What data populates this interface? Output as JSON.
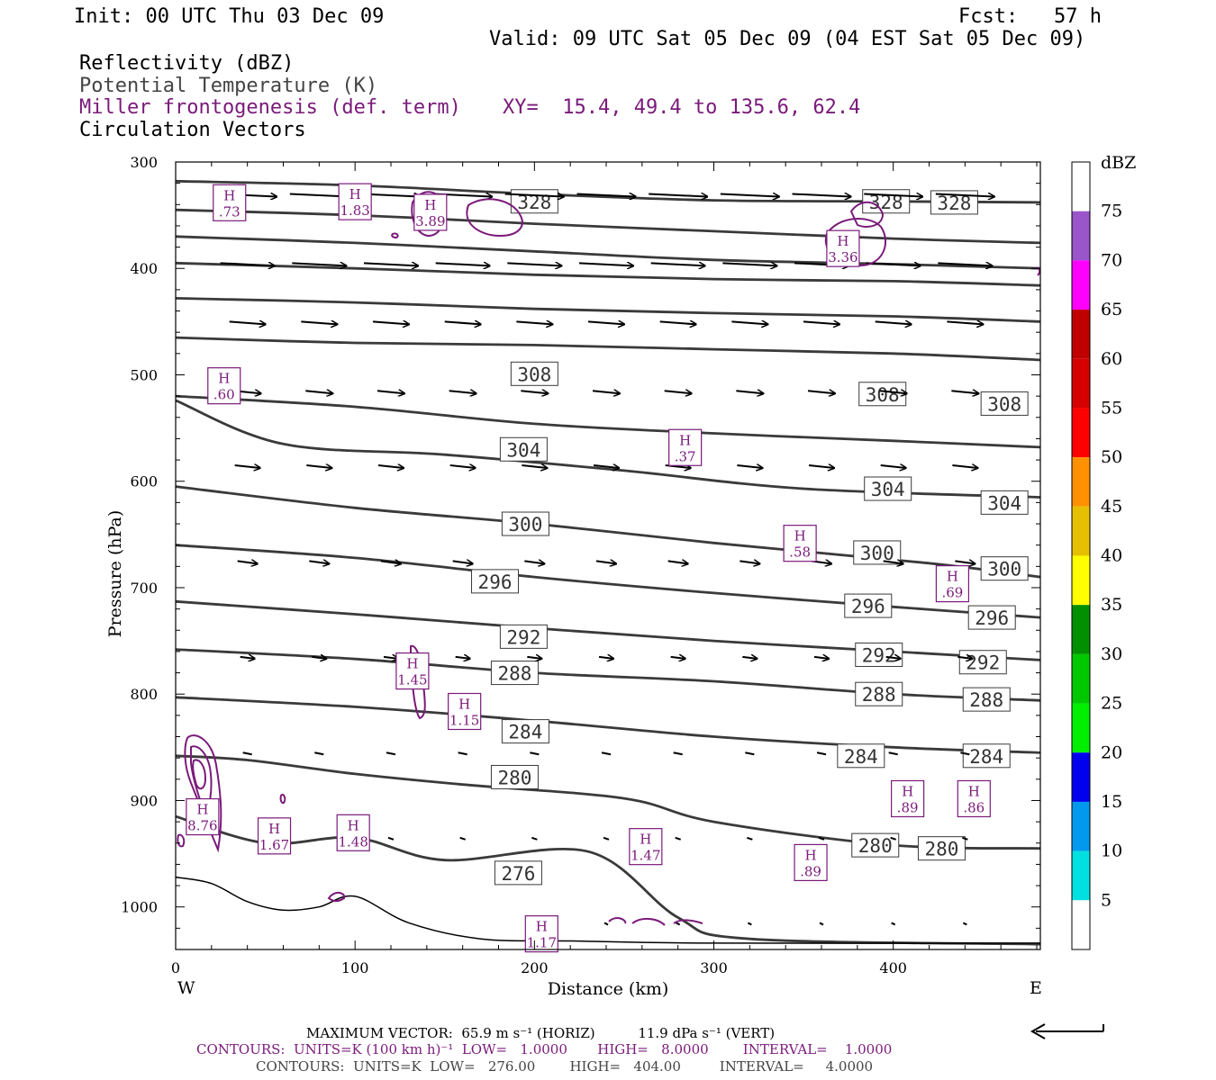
{
  "header": {
    "init": "Init: 00 UTC Thu 03 Dec 09",
    "fcst": "Fcst:   57 h",
    "valid": "Valid: 09 UTC Sat 05 Dec 09 (04 EST Sat 05 Dec 09)",
    "field1": "Reflectivity (dBZ)",
    "field2": "Potential Temperature (K)",
    "field3": "Miller frontogenesis (def. term)",
    "xy": "XY=  15.4, 49.4 to 135.6, 62.4",
    "field4": "Circulation Vectors"
  },
  "colorbar": {
    "unit": "dBZ",
    "levels": [
      5,
      10,
      15,
      20,
      25,
      30,
      35,
      40,
      45,
      50,
      55,
      60,
      65,
      70,
      75
    ],
    "colors": [
      "#ffffff",
      "#00e0e0",
      "#0099ee",
      "#0000ee",
      "#00ee00",
      "#00c800",
      "#009000",
      "#ffff00",
      "#e6c000",
      "#ff9000",
      "#ff0000",
      "#d60000",
      "#c00000",
      "#ff00ff",
      "#9955c9",
      "#ffffff"
    ]
  },
  "footer": {
    "max_vector": "MAXIMUM VECTOR:  65.9 m s⁻¹ (HORIZ)          11.9 dPa s⁻¹ (VERT)",
    "contours1": "CONTOURS:  UNITS=K (100 km h)⁻¹  LOW=   1.0000       HIGH=   8.0000        INTERVAL=    1.0000",
    "contours2": "CONTOURS:  UNITS=K  LOW=   276.00        HIGH=   404.00         INTERVAL=     4.0000"
  },
  "chart_data": {
    "type": "contour-cross-section",
    "xlabel": "Distance (km)",
    "ylabel": "Pressure (hPa)",
    "xlim": [
      0,
      482
    ],
    "ylim": [
      1040,
      300
    ],
    "x_ticks": [
      0,
      100,
      200,
      300,
      400
    ],
    "y_ticks": [
      300,
      400,
      500,
      600,
      700,
      800,
      900,
      1000
    ],
    "left_label": "W",
    "right_label": "E",
    "theta_contours": [
      {
        "label": "328",
        "points": [
          [
            0,
            318
          ],
          [
            100,
            322
          ],
          [
            200,
            330
          ],
          [
            300,
            336
          ],
          [
            400,
            337
          ],
          [
            482,
            338
          ]
        ],
        "labels_at": [
          [
            200,
            337
          ],
          [
            396,
            337
          ],
          [
            434,
            338
          ]
        ]
      },
      {
        "label": "",
        "points": [
          [
            0,
            345
          ],
          [
            100,
            350
          ],
          [
            200,
            358
          ],
          [
            300,
            365
          ],
          [
            400,
            372
          ],
          [
            482,
            376
          ]
        ],
        "labels_at": []
      },
      {
        "label": "",
        "points": [
          [
            0,
            370
          ],
          [
            100,
            376
          ],
          [
            200,
            384
          ],
          [
            300,
            392
          ],
          [
            400,
            396
          ],
          [
            482,
            400
          ]
        ],
        "labels_at": []
      },
      {
        "label": "",
        "points": [
          [
            0,
            395
          ],
          [
            100,
            400
          ],
          [
            200,
            406
          ],
          [
            300,
            410
          ],
          [
            400,
            412
          ],
          [
            482,
            416
          ]
        ],
        "labels_at": []
      },
      {
        "label": "",
        "points": [
          [
            0,
            428
          ],
          [
            100,
            432
          ],
          [
            200,
            438
          ],
          [
            300,
            442
          ],
          [
            400,
            445
          ],
          [
            482,
            450
          ]
        ],
        "labels_at": []
      },
      {
        "label": "",
        "points": [
          [
            0,
            465
          ],
          [
            100,
            470
          ],
          [
            200,
            472
          ],
          [
            300,
            476
          ],
          [
            400,
            480
          ],
          [
            482,
            486
          ]
        ],
        "labels_at": []
      },
      {
        "label": "308",
        "points": [
          [
            0,
            520
          ],
          [
            100,
            530
          ],
          [
            200,
            546
          ],
          [
            300,
            555
          ],
          [
            400,
            562
          ],
          [
            482,
            568
          ]
        ],
        "labels_at": [
          [
            200,
            499
          ],
          [
            394,
            518
          ],
          [
            462,
            527
          ]
        ]
      },
      {
        "label": "304",
        "points": [
          [
            0,
            524
          ],
          [
            60,
            565
          ],
          [
            150,
            575
          ],
          [
            250,
            590
          ],
          [
            350,
            607
          ],
          [
            482,
            615
          ]
        ],
        "labels_at": [
          [
            194,
            570
          ],
          [
            397,
            607
          ],
          [
            462,
            620
          ]
        ]
      },
      {
        "label": "300",
        "points": [
          [
            0,
            605
          ],
          [
            100,
            625
          ],
          [
            200,
            640
          ],
          [
            300,
            658
          ],
          [
            420,
            677
          ],
          [
            482,
            690
          ]
        ],
        "labels_at": [
          [
            195,
            640
          ],
          [
            391,
            667
          ],
          [
            462,
            682
          ]
        ]
      },
      {
        "label": "296",
        "points": [
          [
            0,
            660
          ],
          [
            100,
            672
          ],
          [
            200,
            690
          ],
          [
            300,
            705
          ],
          [
            400,
            718
          ],
          [
            482,
            728
          ]
        ],
        "labels_at": [
          [
            178,
            694
          ],
          [
            386,
            717
          ],
          [
            455,
            728
          ]
        ]
      },
      {
        "label": "292",
        "points": [
          [
            0,
            713
          ],
          [
            100,
            725
          ],
          [
            200,
            738
          ],
          [
            300,
            750
          ],
          [
            400,
            760
          ],
          [
            482,
            768
          ]
        ],
        "labels_at": [
          [
            194,
            746
          ],
          [
            392,
            763
          ],
          [
            450,
            770
          ]
        ]
      },
      {
        "label": "288",
        "points": [
          [
            0,
            758
          ],
          [
            100,
            767
          ],
          [
            200,
            780
          ],
          [
            300,
            788
          ],
          [
            400,
            800
          ],
          [
            482,
            806
          ]
        ],
        "labels_at": [
          [
            189,
            780
          ],
          [
            392,
            800
          ],
          [
            452,
            805
          ]
        ]
      },
      {
        "label": "284",
        "points": [
          [
            0,
            803
          ],
          [
            100,
            812
          ],
          [
            200,
            825
          ],
          [
            300,
            840
          ],
          [
            400,
            850
          ],
          [
            482,
            855
          ]
        ],
        "labels_at": [
          [
            195,
            835
          ],
          [
            382,
            858
          ],
          [
            452,
            858
          ]
        ]
      },
      {
        "label": "280",
        "points": [
          [
            0,
            858
          ],
          [
            40,
            862
          ],
          [
            100,
            875
          ],
          [
            160,
            885
          ],
          [
            250,
            898
          ],
          [
            300,
            920
          ],
          [
            400,
            942
          ],
          [
            482,
            945
          ]
        ],
        "labels_at": [
          [
            189,
            878
          ],
          [
            390,
            942
          ],
          [
            427,
            945
          ]
        ]
      },
      {
        "label": "276",
        "points": [
          [
            0,
            915
          ],
          [
            50,
            940
          ],
          [
            100,
            935
          ],
          [
            150,
            956
          ],
          [
            230,
            948
          ],
          [
            280,
            1010
          ],
          [
            320,
            1030
          ],
          [
            482,
            1035
          ]
        ],
        "labels_at": [
          [
            191,
            968
          ]
        ]
      }
    ],
    "frontogenesis_highs": [
      {
        "label": ".73",
        "x": 30,
        "p": 340
      },
      {
        "label": "1.83",
        "x": 100,
        "p": 339
      },
      {
        "label": "3.89",
        "x": 142,
        "p": 349
      },
      {
        "label": "3.36",
        "x": 372,
        "p": 383
      },
      {
        "label": ".60",
        "x": 27,
        "p": 512
      },
      {
        "label": ".37",
        "x": 284,
        "p": 570
      },
      {
        "label": "1.45",
        "x": 132,
        "p": 780
      },
      {
        "label": "1.15",
        "x": 161,
        "p": 818
      },
      {
        "label": ".58",
        "x": 348,
        "p": 660
      },
      {
        "label": ".69",
        "x": 433,
        "p": 698
      },
      {
        "label": "8.76",
        "x": 15,
        "p": 917
      },
      {
        "label": "1.67",
        "x": 55,
        "p": 935
      },
      {
        "label": "1.48",
        "x": 99,
        "p": 932
      },
      {
        "label": "1.47",
        "x": 262,
        "p": 945
      },
      {
        "label": ".89",
        "x": 408,
        "p": 900
      },
      {
        "label": ".86",
        "x": 445,
        "p": 900
      },
      {
        "label": ".89",
        "x": 354,
        "p": 960
      },
      {
        "label": "1.17",
        "x": 204,
        "p": 1027
      }
    ],
    "vector_rows": [
      {
        "p": 330,
        "length": 65,
        "x_start": 40
      },
      {
        "p": 395,
        "length": 60,
        "x_start": 40
      },
      {
        "p": 450,
        "length": 40,
        "x_start": 40
      },
      {
        "p": 515,
        "length": 30,
        "x_start": 40
      },
      {
        "p": 585,
        "length": 28,
        "x_start": 40
      },
      {
        "p": 675,
        "length": 22,
        "x_start": 40
      },
      {
        "p": 765,
        "length": 16,
        "x_start": 40
      },
      {
        "p": 855,
        "length": 10,
        "x_start": 40
      },
      {
        "p": 935,
        "length": 6,
        "x_start": 120
      },
      {
        "p": 1015,
        "length": 4,
        "x_start": 200
      }
    ]
  },
  "reference_arrow": "reference vector arrow"
}
